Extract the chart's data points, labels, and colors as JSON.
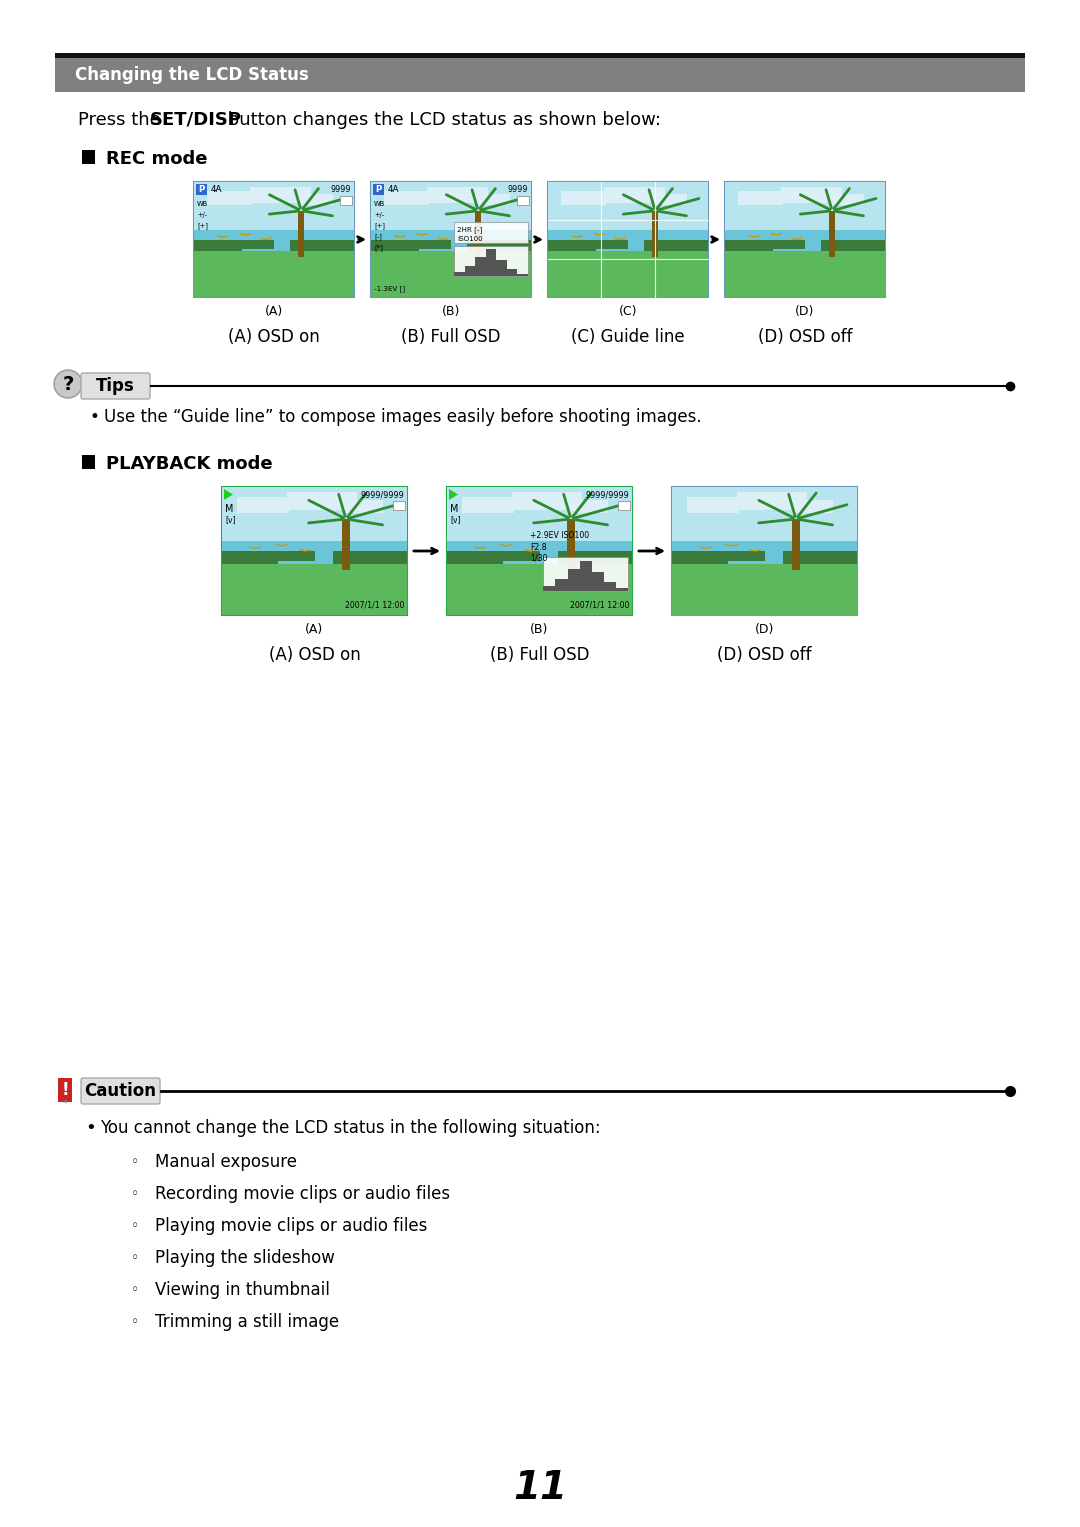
{
  "title_bar_text": "Changing the LCD Status",
  "title_bar_bg": "#808080",
  "intro_text_plain": "Press the ",
  "intro_text_bold": "SET/DISP",
  "intro_text_rest": " button changes the LCD status as shown below:",
  "rec_mode_label": "REC mode",
  "playback_mode_label": "PLAYBACK mode",
  "rec_captions_letter": [
    "(A)",
    "(B)",
    "(C)",
    "(D)"
  ],
  "rec_captions_text": [
    "(A) OSD on",
    "(B) Full OSD",
    "(C) Guide line",
    "(D) OSD off"
  ],
  "pb_captions_letter": [
    "(A)",
    "(B)",
    "(D)"
  ],
  "pb_captions_text": [
    "(A) OSD on",
    "(B) Full OSD",
    "(D) OSD off"
  ],
  "tips_label": "Tips",
  "tips_bullet": "Use the “Guide line” to compose images easily before shooting images.",
  "caution_label": "Caution",
  "caution_intro": "You cannot change the LCD status in the following situation:",
  "caution_bullets": [
    "Manual exposure",
    "Recording movie clips or audio files",
    "Playing movie clips or audio files",
    "Playing the slideshow",
    "Viewing in thumbnail",
    "Trimming a still image"
  ],
  "page_number": "11",
  "bg_color": "#ffffff",
  "text_color": "#000000",
  "sky_top": "#a8d8ea",
  "sky_mid": "#b8e4f0",
  "sea_color": "#6bc5d8",
  "grass_color": "#5cb85c",
  "dark_grass": "#3a7a3a",
  "cloud_color": "#dff0f8",
  "palm_green": "#2e8b2e",
  "osd_green": "#22aa22",
  "arrow_color": "#111111",
  "rec_border": "#6699bb",
  "pb_border": "#22aa44"
}
